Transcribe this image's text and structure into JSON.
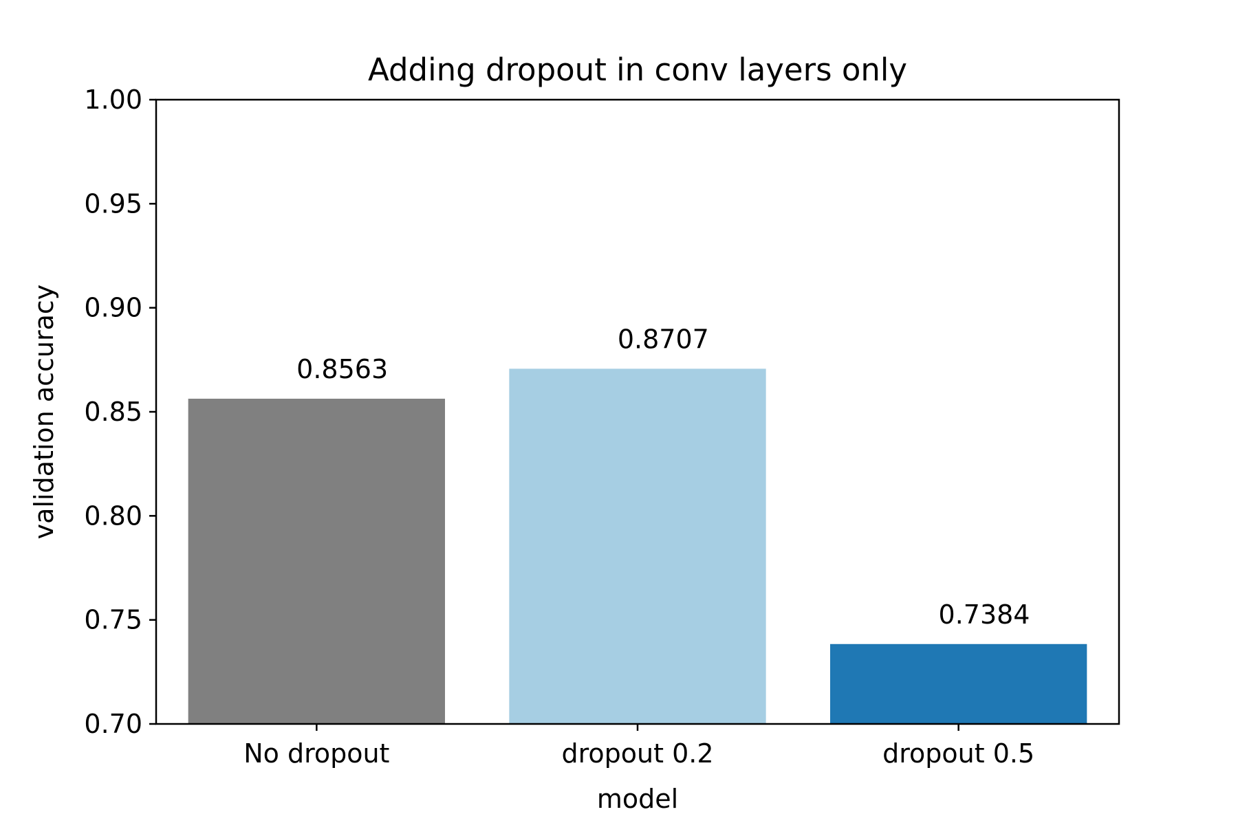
{
  "chart_data": {
    "type": "bar",
    "title": "Adding dropout in conv layers only",
    "xlabel": "model",
    "ylabel": "validation accuracy",
    "categories": [
      "No dropout",
      "dropout 0.2",
      "dropout 0.5"
    ],
    "values": [
      0.8563,
      0.8707,
      0.7384
    ],
    "data_labels": [
      "0.8563",
      "0.8707",
      "0.7384"
    ],
    "bar_colors": [
      "#808080",
      "#a6cee3",
      "#1f78b4"
    ],
    "ylim": [
      0.7,
      1.0
    ],
    "yticks": [
      0.7,
      0.75,
      0.8,
      0.85,
      0.9,
      0.95,
      1.0
    ],
    "ytick_labels": [
      "0.70",
      "0.75",
      "0.80",
      "0.85",
      "0.90",
      "0.95",
      "1.00"
    ],
    "grid": false,
    "legend": "none"
  }
}
